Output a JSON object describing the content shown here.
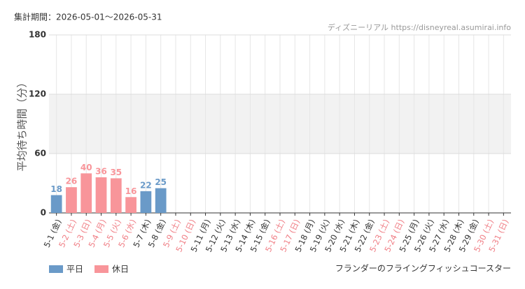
{
  "chart_data": {
    "type": "bar",
    "subtitle": "集計期間：2026-05-01～2026-05-31",
    "source": "ディズニーリアル https://disneyreal.asumirai.info",
    "ylabel": "平均待ち時間（分）",
    "footer": "フランダーのフライングフィッシュコースター",
    "categories": [
      "5-1 (金)",
      "5-2 (土)",
      "5-3 (日)",
      "5-4 (月)",
      "5-5 (火)",
      "5-6 (水)",
      "5-7 (木)",
      "5-8 (金)",
      "5-9 (土)",
      "5-10 (日)",
      "5-11 (月)",
      "5-12 (火)",
      "5-13 (水)",
      "5-14 (木)",
      "5-15 (金)",
      "5-16 (土)",
      "5-17 (日)",
      "5-18 (月)",
      "5-19 (火)",
      "5-20 (水)",
      "5-21 (木)",
      "5-22 (金)",
      "5-23 (土)",
      "5-24 (日)",
      "5-25 (月)",
      "5-26 (火)",
      "5-27 (水)",
      "5-28 (木)",
      "5-29 (金)",
      "5-30 (土)",
      "5-31 (日)"
    ],
    "category_colors": [
      "#333333",
      "#f07f86",
      "#f07f86",
      "#f07f86",
      "#f07f86",
      "#f07f86",
      "#333333",
      "#333333",
      "#f07f86",
      "#f07f86",
      "#333333",
      "#333333",
      "#333333",
      "#333333",
      "#333333",
      "#f07f86",
      "#f07f86",
      "#333333",
      "#333333",
      "#333333",
      "#333333",
      "#333333",
      "#f07f86",
      "#f07f86",
      "#333333",
      "#333333",
      "#333333",
      "#333333",
      "#333333",
      "#f07f86",
      "#f07f86"
    ],
    "series": [
      {
        "name": "平日",
        "color": "#6a9ac8",
        "values": [
          18,
          null,
          null,
          null,
          null,
          null,
          22,
          25,
          null,
          null,
          null,
          null,
          null,
          null,
          null,
          null,
          null,
          null,
          null,
          null,
          null,
          null,
          null,
          null,
          null,
          null,
          null,
          null,
          null,
          null,
          null
        ]
      },
      {
        "name": "休日",
        "color": "#f8959a",
        "values": [
          null,
          26,
          40,
          36,
          35,
          16,
          null,
          null,
          null,
          null,
          null,
          null,
          null,
          null,
          null,
          null,
          null,
          null,
          null,
          null,
          null,
          null,
          null,
          null,
          null,
          null,
          null,
          null,
          null,
          null,
          null
        ]
      }
    ],
    "ylim": [
      0,
      180
    ],
    "yticks": [
      0,
      60,
      120,
      180
    ],
    "grid": true
  }
}
